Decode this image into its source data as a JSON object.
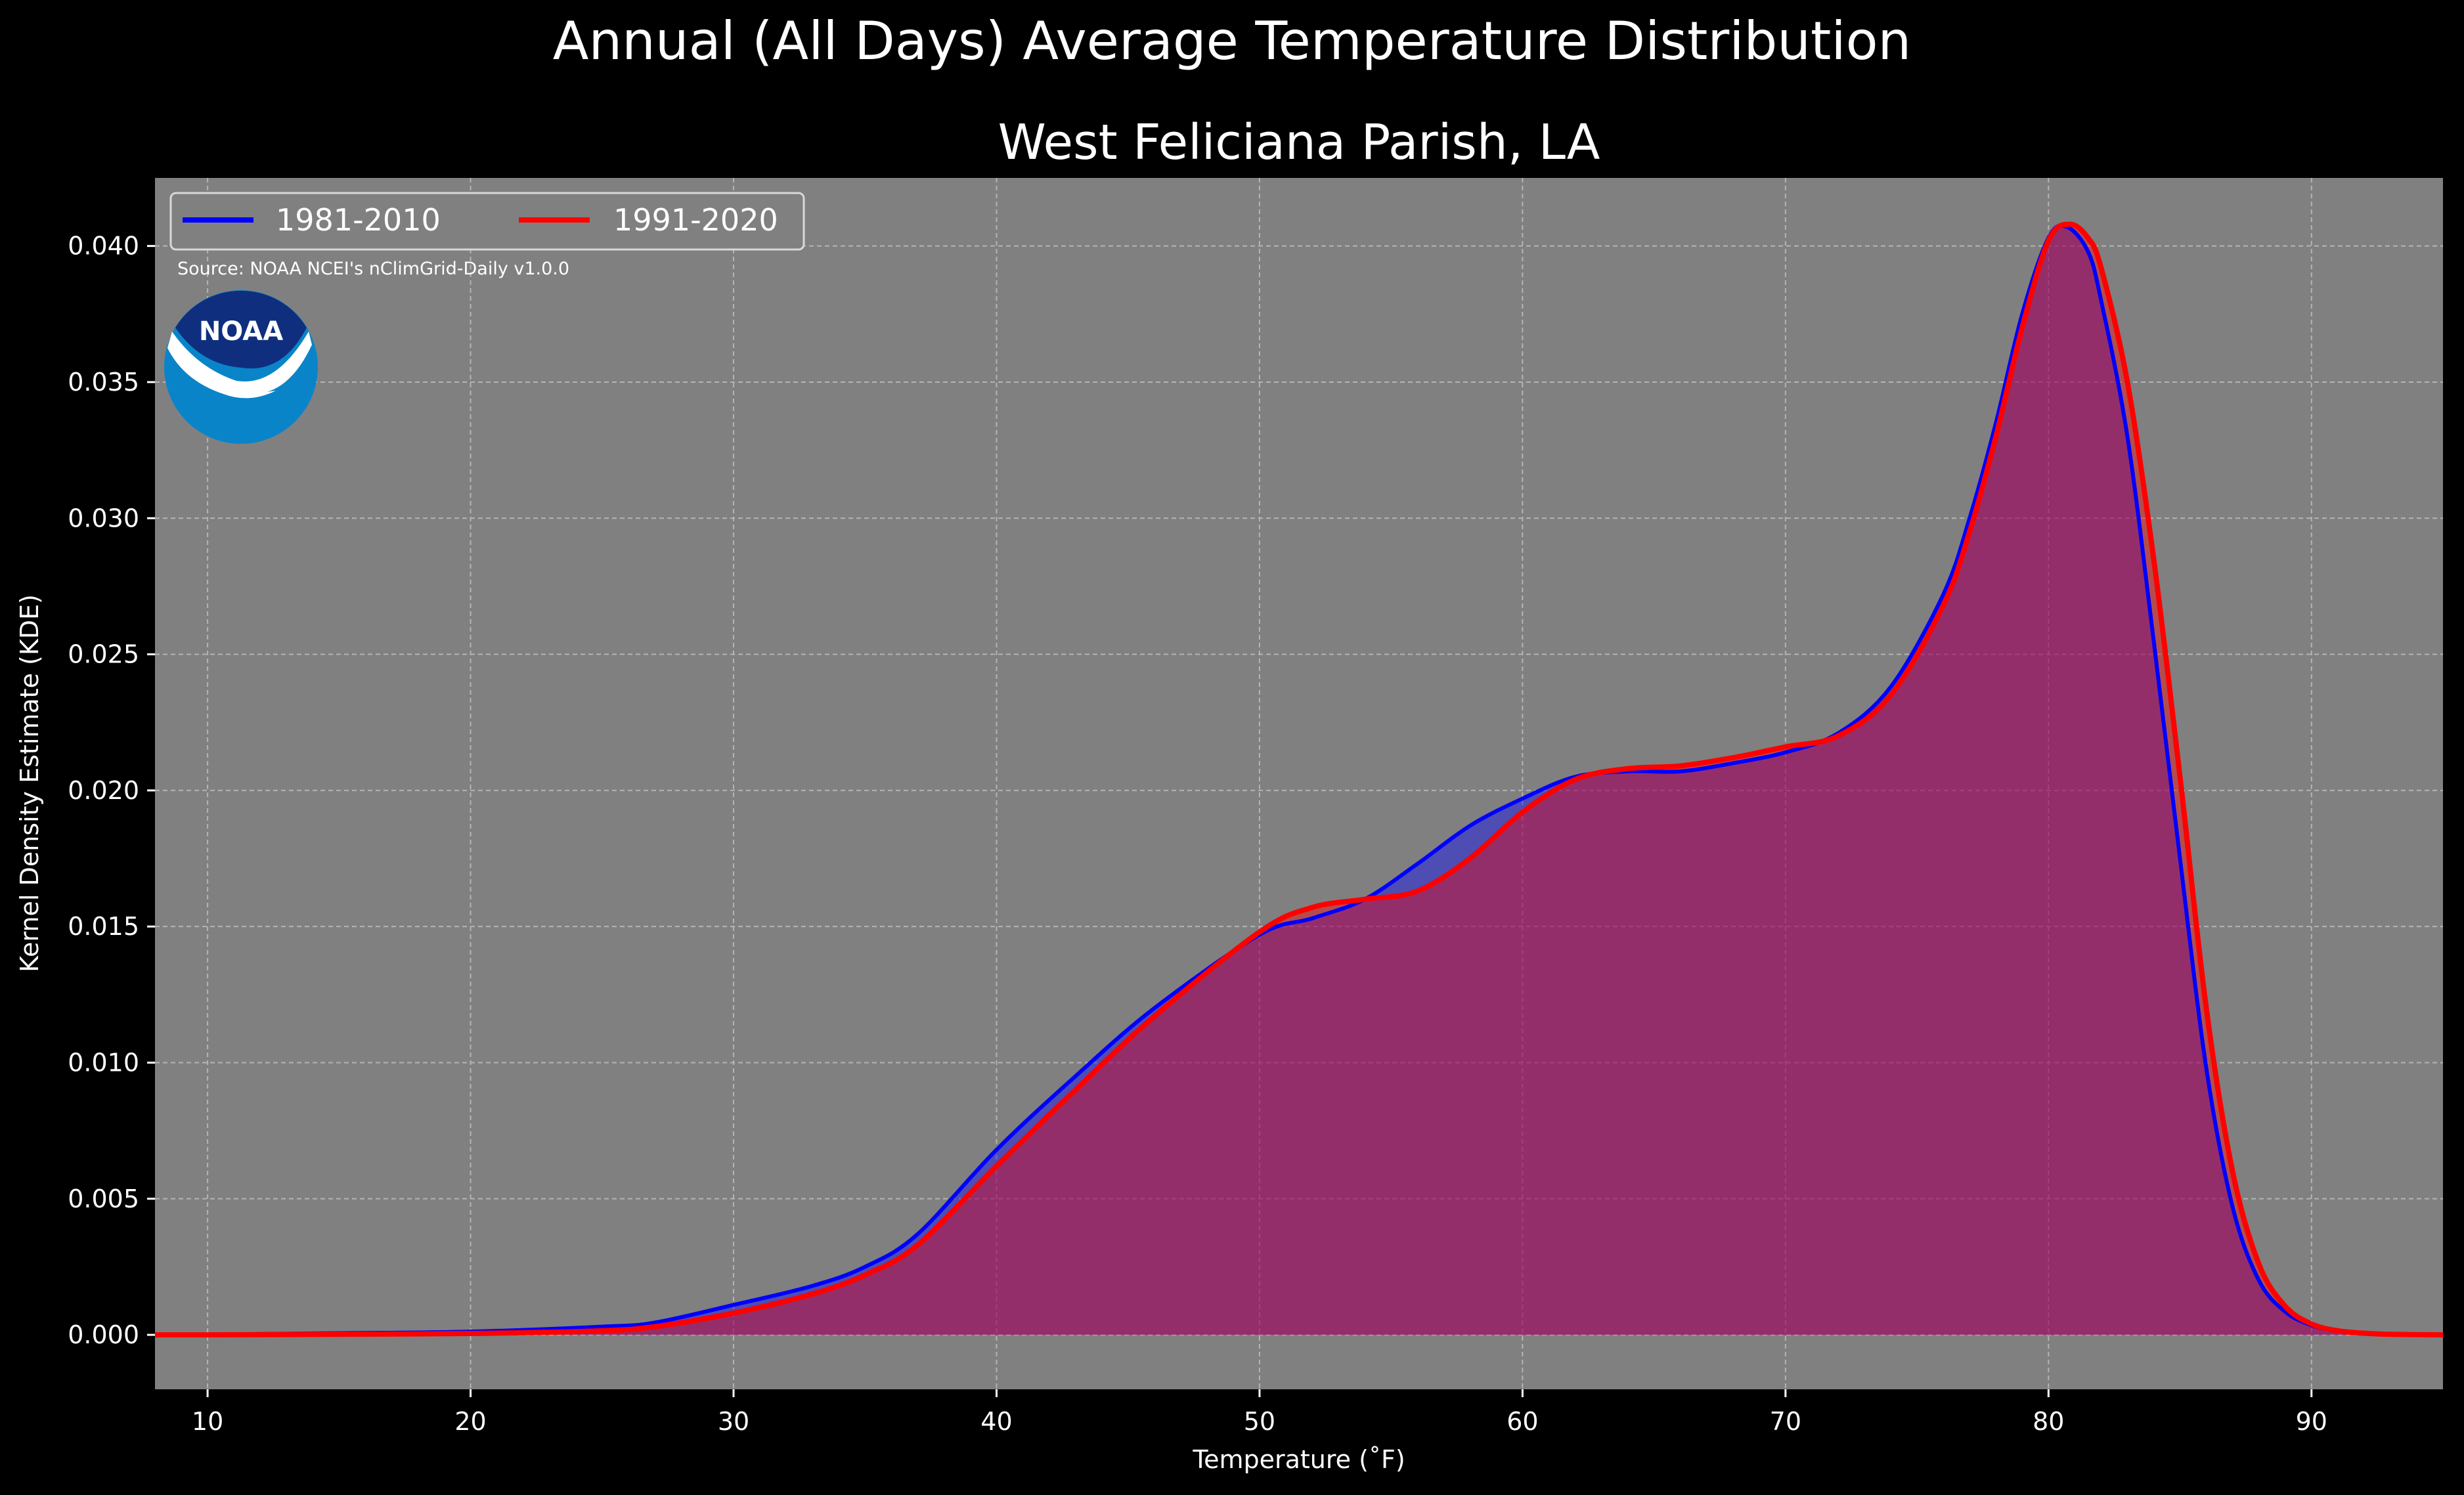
{
  "figure": {
    "suptitle": "Annual (All Days) Average Temperature Distribution",
    "background": "#000000",
    "axes_facecolor": "#808080"
  },
  "source_note": "Source: NOAA NCEI's nClimGrid-Daily v1.0.0",
  "logo": {
    "text": "NOAA",
    "icon": "noaa-logo-icon",
    "colors": {
      "dark_blue": "#0f2f7e",
      "light_blue": "#0a84c9",
      "white": "#ffffff"
    }
  },
  "chart_data": {
    "type": "area",
    "title": "West Feliciana Parish, LA",
    "xlabel": "Temperature ($^\\circ$F)",
    "xlabel_display": "Temperature (˚F)",
    "ylabel": "Kernel Density Estimate (KDE)",
    "xlim": [
      8,
      95
    ],
    "ylim": [
      -0.002,
      0.0425
    ],
    "x_ticks": [
      10,
      20,
      30,
      40,
      50,
      60,
      70,
      80,
      90
    ],
    "x_tick_labels": [
      "10",
      "20",
      "30",
      "40",
      "50",
      "60",
      "70",
      "80",
      "90"
    ],
    "y_ticks": [
      0.0,
      0.005,
      0.01,
      0.015,
      0.02,
      0.025,
      0.03,
      0.035,
      0.04
    ],
    "y_tick_labels": [
      "0.000",
      "0.005",
      "0.010",
      "0.015",
      "0.020",
      "0.025",
      "0.030",
      "0.035",
      "0.040"
    ],
    "grid": true,
    "legend": {
      "placement": "upper left",
      "ncol": 2
    },
    "series": [
      {
        "name": "1981-2010",
        "line_color": "#0000ff",
        "fill_color": "#0000ff",
        "x": [
          8,
          10,
          15,
          20,
          25,
          27,
          30,
          33,
          35,
          37,
          40,
          43,
          46,
          50,
          52,
          54,
          56,
          58,
          60,
          62,
          64,
          66,
          68,
          70,
          72,
          74,
          76,
          77,
          78,
          79,
          80,
          80.7,
          81.5,
          82,
          83,
          84,
          85,
          86,
          87,
          88,
          89,
          90,
          91,
          92,
          93,
          95
        ],
        "y": [
          0.0,
          1e-05,
          6e-05,
          0.00012,
          0.0003,
          0.00045,
          0.0011,
          0.0018,
          0.0025,
          0.0037,
          0.0068,
          0.0095,
          0.012,
          0.0147,
          0.0153,
          0.016,
          0.0173,
          0.0187,
          0.0197,
          0.0205,
          0.0207,
          0.0207,
          0.021,
          0.0214,
          0.0221,
          0.0238,
          0.0272,
          0.03,
          0.0335,
          0.0375,
          0.0403,
          0.0407,
          0.0398,
          0.038,
          0.033,
          0.0255,
          0.0175,
          0.0098,
          0.0047,
          0.002,
          0.00085,
          0.00035,
          0.00013,
          5e-05,
          2e-05,
          0.0
        ]
      },
      {
        "name": "1991-2020",
        "line_color": "#ff0000",
        "fill_color": "#ff0000",
        "x": [
          8,
          10,
          15,
          20,
          25,
          27,
          30,
          33,
          35,
          37,
          40,
          43,
          46,
          50,
          52,
          54,
          56,
          58,
          60,
          62,
          64,
          66,
          68,
          70,
          72,
          74,
          76,
          77,
          78,
          79,
          80,
          80.8,
          81.5,
          82,
          83,
          84,
          85,
          86,
          87,
          88,
          89,
          90,
          91,
          92,
          93,
          95
        ],
        "y": [
          0.0,
          0.0,
          2e-05,
          5e-05,
          0.00015,
          0.0003,
          0.0008,
          0.0015,
          0.0022,
          0.0033,
          0.0062,
          0.009,
          0.0117,
          0.0148,
          0.0157,
          0.016,
          0.0163,
          0.0175,
          0.0192,
          0.0204,
          0.0208,
          0.0209,
          0.0212,
          0.0216,
          0.022,
          0.0235,
          0.0268,
          0.0295,
          0.033,
          0.037,
          0.0402,
          0.0408,
          0.0403,
          0.0392,
          0.035,
          0.0285,
          0.0205,
          0.012,
          0.006,
          0.0026,
          0.00105,
          0.0004,
          0.00015,
          6e-05,
          2e-05,
          0.0
        ]
      }
    ]
  }
}
